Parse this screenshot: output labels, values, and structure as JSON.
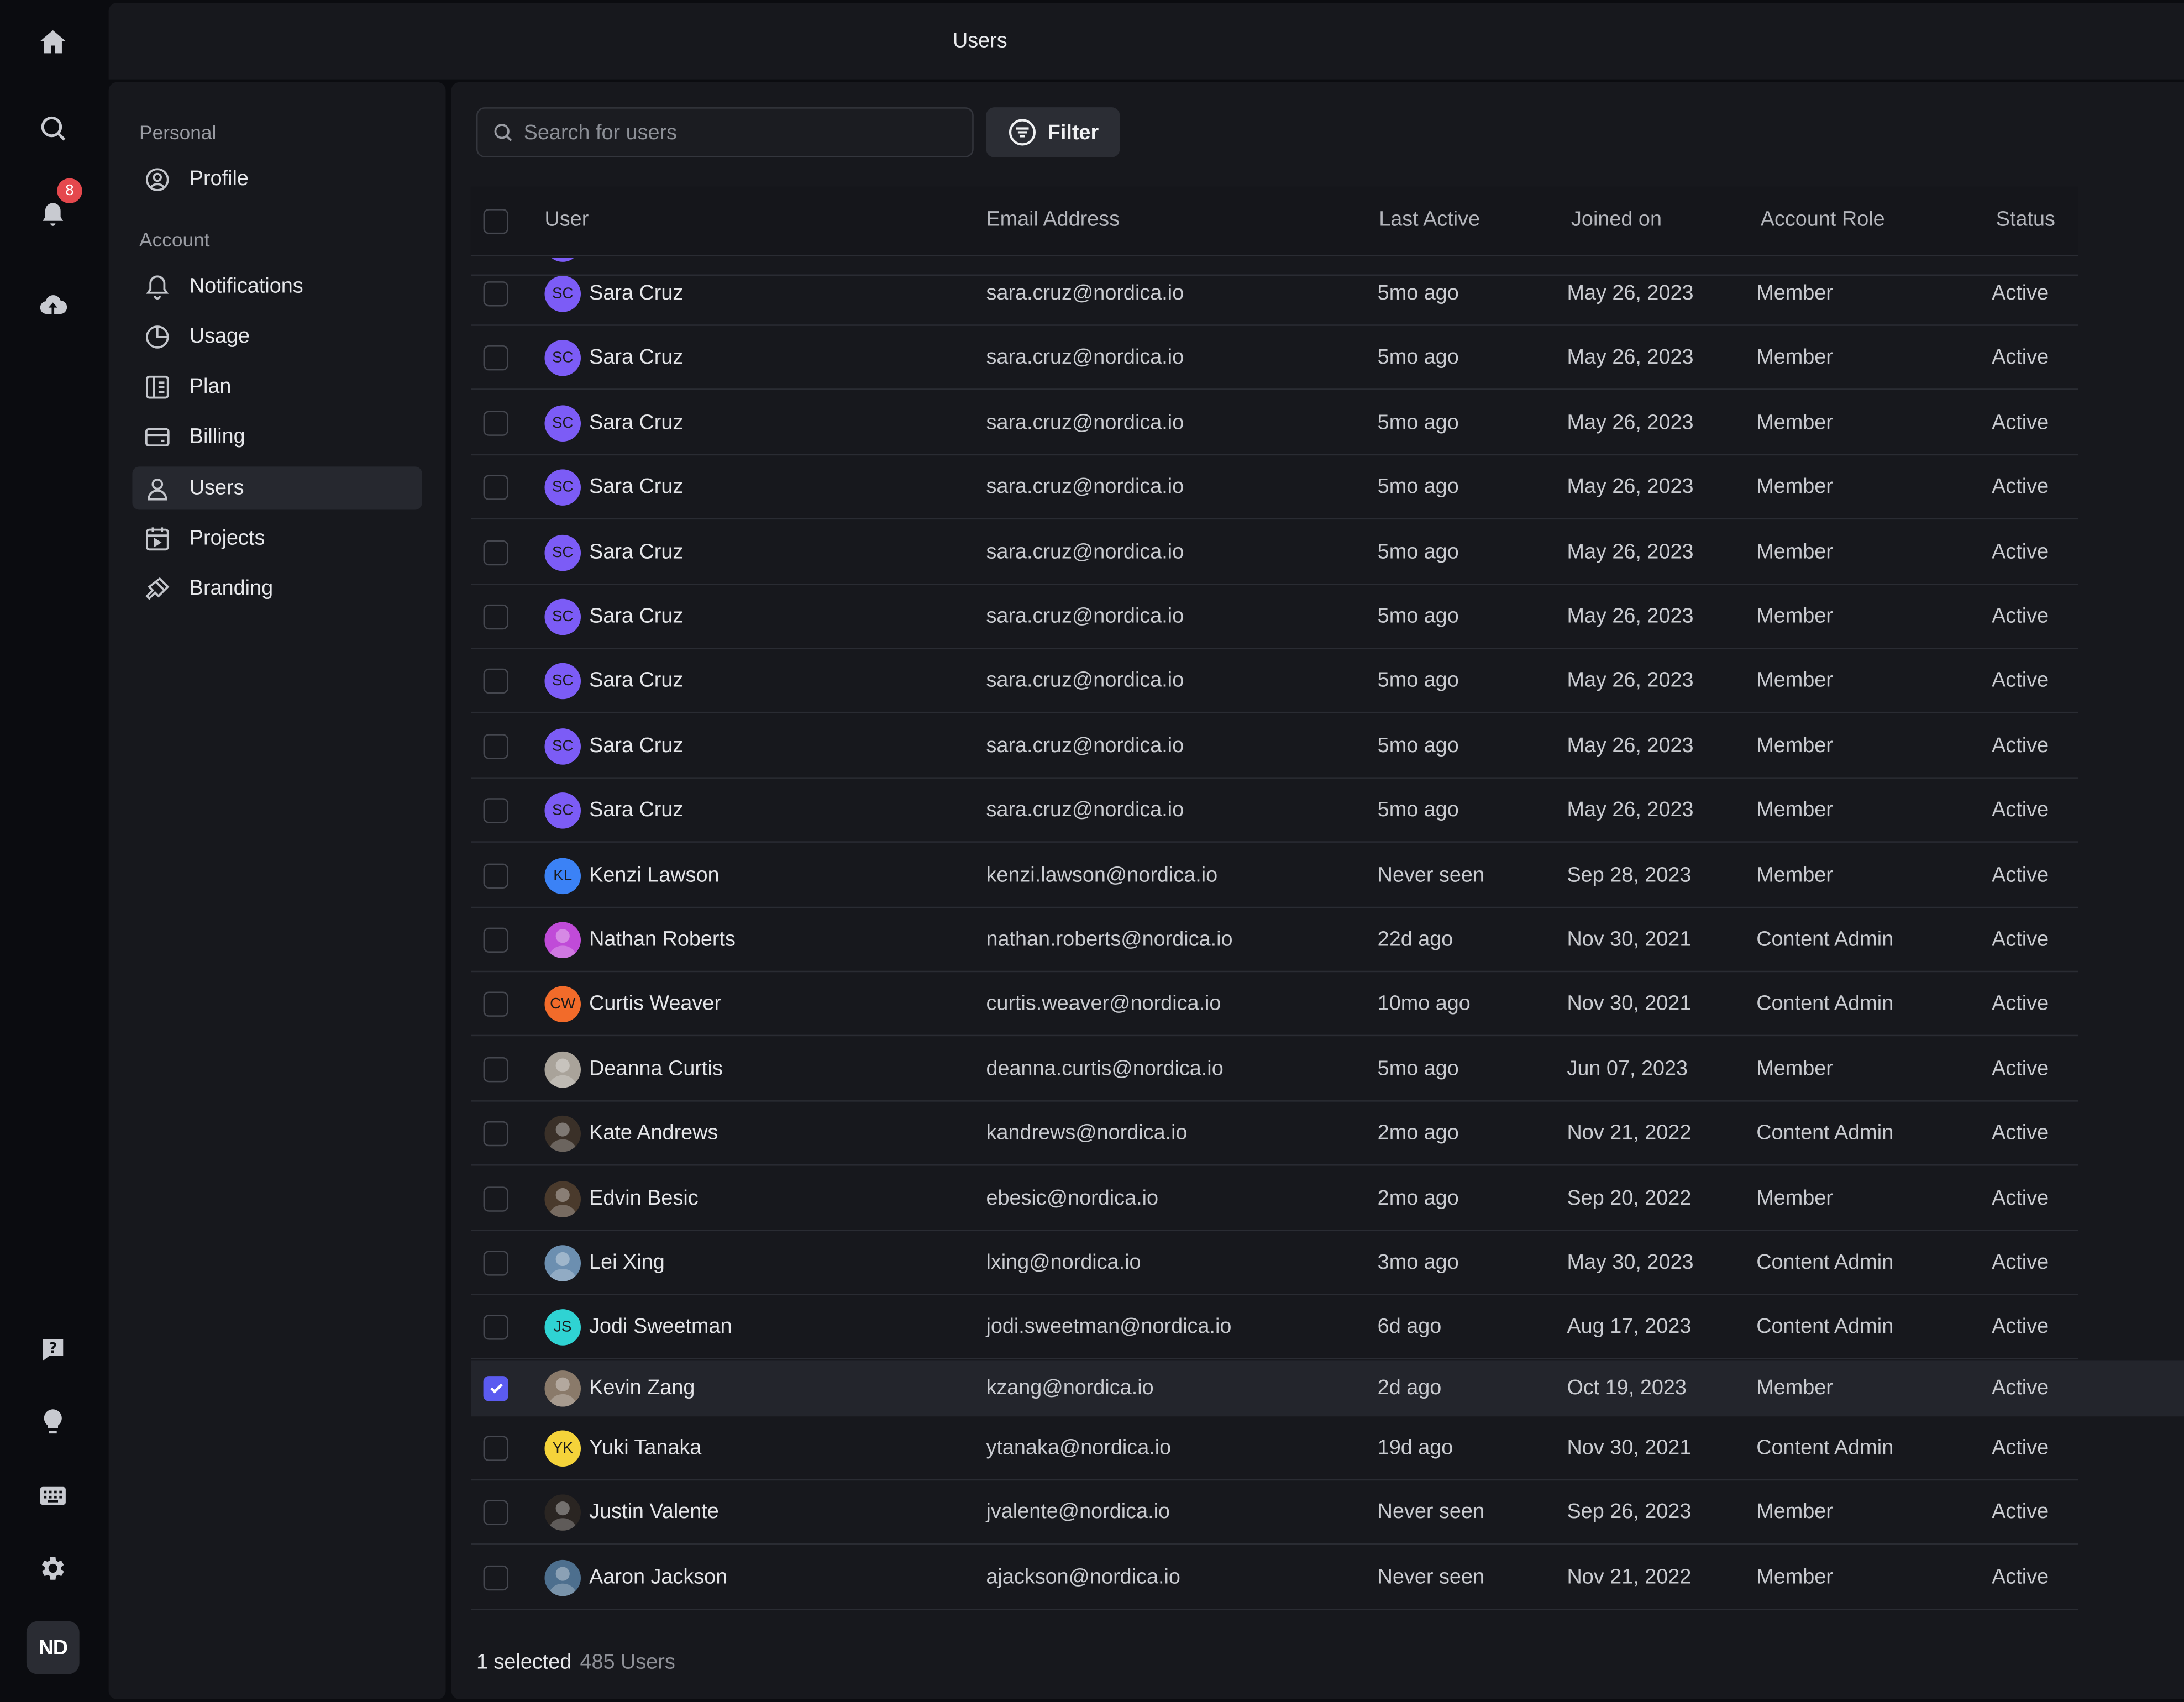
{
  "rail": {
    "notifications_badge": "8",
    "user_initials": "ND",
    "icons": [
      "home-icon",
      "search-icon",
      "bell-icon",
      "cloud-upload-icon",
      "help-icon",
      "lightbulb-icon",
      "keyboard-icon",
      "gear-icon"
    ]
  },
  "topbar": {
    "title": "Users"
  },
  "sidemenu": {
    "personal_label": "Personal",
    "account_label": "Account",
    "items": [
      {
        "label": "Profile",
        "icon": "profile-icon"
      },
      {
        "label": "Notifications",
        "icon": "bell-icon"
      },
      {
        "label": "Usage",
        "icon": "pie-chart-icon"
      },
      {
        "label": "Plan",
        "icon": "plan-icon"
      },
      {
        "label": "Billing",
        "icon": "credit-card-icon"
      },
      {
        "label": "Users",
        "icon": "user-icon",
        "active": true
      },
      {
        "label": "Projects",
        "icon": "projects-icon"
      },
      {
        "label": "Branding",
        "icon": "brush-icon"
      }
    ]
  },
  "toolbar": {
    "search_placeholder": "Search for users",
    "filter_label": "Filter"
  },
  "table": {
    "columns": [
      "User",
      "Email Address",
      "Last Active",
      "Joined on",
      "Account Role",
      "Status"
    ],
    "rows": [
      {
        "name": "Sara Cruz",
        "initials": "SC",
        "avatar_color": "#7c5cf6",
        "email": "sara.cruz@nordica.io",
        "last_active": "5mo ago",
        "joined": "May 26, 2023",
        "role": "Member",
        "status": "Active"
      },
      {
        "name": "Sara Cruz",
        "initials": "SC",
        "avatar_color": "#7c5cf6",
        "email": "sara.cruz@nordica.io",
        "last_active": "5mo ago",
        "joined": "May 26, 2023",
        "role": "Member",
        "status": "Active"
      },
      {
        "name": "Sara Cruz",
        "initials": "SC",
        "avatar_color": "#7c5cf6",
        "email": "sara.cruz@nordica.io",
        "last_active": "5mo ago",
        "joined": "May 26, 2023",
        "role": "Member",
        "status": "Active"
      },
      {
        "name": "Sara Cruz",
        "initials": "SC",
        "avatar_color": "#7c5cf6",
        "email": "sara.cruz@nordica.io",
        "last_active": "5mo ago",
        "joined": "May 26, 2023",
        "role": "Member",
        "status": "Active"
      },
      {
        "name": "Sara Cruz",
        "initials": "SC",
        "avatar_color": "#7c5cf6",
        "email": "sara.cruz@nordica.io",
        "last_active": "5mo ago",
        "joined": "May 26, 2023",
        "role": "Member",
        "status": "Active"
      },
      {
        "name": "Sara Cruz",
        "initials": "SC",
        "avatar_color": "#7c5cf6",
        "email": "sara.cruz@nordica.io",
        "last_active": "5mo ago",
        "joined": "May 26, 2023",
        "role": "Member",
        "status": "Active"
      },
      {
        "name": "Sara Cruz",
        "initials": "SC",
        "avatar_color": "#7c5cf6",
        "email": "sara.cruz@nordica.io",
        "last_active": "5mo ago",
        "joined": "May 26, 2023",
        "role": "Member",
        "status": "Active"
      },
      {
        "name": "Sara Cruz",
        "initials": "SC",
        "avatar_color": "#7c5cf6",
        "email": "sara.cruz@nordica.io",
        "last_active": "5mo ago",
        "joined": "May 26, 2023",
        "role": "Member",
        "status": "Active"
      },
      {
        "name": "Sara Cruz",
        "initials": "SC",
        "avatar_color": "#7c5cf6",
        "email": "sara.cruz@nordica.io",
        "last_active": "5mo ago",
        "joined": "May 26, 2023",
        "role": "Member",
        "status": "Active"
      },
      {
        "name": "Kenzi Lawson",
        "initials": "KL",
        "avatar_color": "#3b82f6",
        "email": "kenzi.lawson@nordica.io",
        "last_active": "Never seen",
        "joined": "Sep 28, 2023",
        "role": "Member",
        "status": "Active"
      },
      {
        "name": "Nathan Roberts",
        "initials": "",
        "avatar_color": "#c04bd8",
        "email": "nathan.roberts@nordica.io",
        "last_active": "22d ago",
        "joined": "Nov 30, 2021",
        "role": "Content Admin",
        "status": "Active"
      },
      {
        "name": "Curtis Weaver",
        "initials": "CW",
        "avatar_color": "#f26b2a",
        "email": "curtis.weaver@nordica.io",
        "last_active": "10mo ago",
        "joined": "Nov 30, 2021",
        "role": "Content Admin",
        "status": "Active"
      },
      {
        "name": "Deanna Curtis",
        "initials": "",
        "avatar_color": "#a9a39a",
        "email": "deanna.curtis@nordica.io",
        "last_active": "5mo ago",
        "joined": "Jun 07, 2023",
        "role": "Member",
        "status": "Active"
      },
      {
        "name": "Kate Andrews",
        "initials": "",
        "avatar_color": "#3a3028",
        "email": "kandrews@nordica.io",
        "last_active": "2mo ago",
        "joined": "Nov 21, 2022",
        "role": "Content Admin",
        "status": "Active"
      },
      {
        "name": "Edvin Besic",
        "initials": "",
        "avatar_color": "#4a3a2c",
        "email": "ebesic@nordica.io",
        "last_active": "2mo ago",
        "joined": "Sep 20, 2022",
        "role": "Member",
        "status": "Active"
      },
      {
        "name": "Lei Xing",
        "initials": "",
        "avatar_color": "#6c8fb0",
        "email": "lxing@nordica.io",
        "last_active": "3mo ago",
        "joined": "May 30, 2023",
        "role": "Content Admin",
        "status": "Active"
      },
      {
        "name": "Jodi Sweetman",
        "initials": "JS",
        "avatar_color": "#2fd3d3",
        "email": "jodi.sweetman@nordica.io",
        "last_active": "6d ago",
        "joined": "Aug 17, 2023",
        "role": "Content Admin",
        "status": "Active"
      },
      {
        "name": "Kevin Zang",
        "initials": "",
        "avatar_color": "#8a7a6a",
        "email": "kzang@nordica.io",
        "last_active": "2d ago",
        "joined": "Oct 19, 2023",
        "role": "Member",
        "status": "Active",
        "selected": true
      },
      {
        "name": "Yuki Tanaka",
        "initials": "YK",
        "avatar_color": "#f5d33a",
        "email": "ytanaka@nordica.io",
        "last_active": "19d ago",
        "joined": "Nov 30, 2021",
        "role": "Content Admin",
        "status": "Active"
      },
      {
        "name": "Justin Valente",
        "initials": "",
        "avatar_color": "#2a2522",
        "email": "jvalente@nordica.io",
        "last_active": "Never seen",
        "joined": "Sep 26, 2023",
        "role": "Member",
        "status": "Active"
      },
      {
        "name": "Aaron Jackson",
        "initials": "",
        "avatar_color": "#4d6f8e",
        "email": "ajackson@nordica.io",
        "last_active": "Never seen",
        "joined": "Nov 21, 2022",
        "role": "Member",
        "status": "Active"
      }
    ]
  },
  "footer": {
    "selected_text": "1 selected",
    "total_text": "485 Users"
  }
}
